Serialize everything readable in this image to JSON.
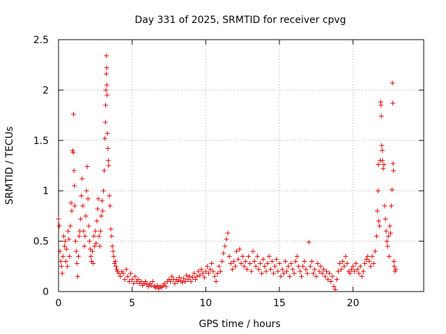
{
  "chart_data": {
    "type": "scatter",
    "title": "Day 331 of 2025, SRMTID for receiver cpvg",
    "xlabel": "GPS time / hours",
    "ylabel": "SRMTID / TECUs",
    "xlim": [
      0,
      24.8
    ],
    "ylim": [
      0,
      2.5
    ],
    "xticks": [
      0,
      5,
      10,
      15,
      20
    ],
    "xtick_labels": [
      "0",
      "5",
      "10",
      "15",
      "20"
    ],
    "yticks": [
      0,
      0.5,
      1,
      1.5,
      2,
      2.5
    ],
    "ytick_labels": [
      "0",
      "0.5",
      "1",
      "1.5",
      "2",
      "2.5"
    ],
    "grid": true,
    "marker": "+",
    "color": "#e00000",
    "series": [
      {
        "name": "SRMTID",
        "points": [
          [
            0.0,
            0.72
          ],
          [
            0.05,
            0.65
          ],
          [
            0.1,
            0.4
          ],
          [
            0.15,
            0.3
          ],
          [
            0.2,
            0.25
          ],
          [
            0.25,
            0.18
          ],
          [
            0.3,
            0.35
          ],
          [
            0.35,
            0.55
          ],
          [
            0.4,
            0.45
          ],
          [
            0.45,
            0.5
          ],
          [
            0.5,
            0.3
          ],
          [
            0.55,
            0.42
          ],
          [
            0.6,
            0.25
          ],
          [
            0.65,
            0.6
          ],
          [
            0.7,
            0.52
          ],
          [
            0.75,
            0.35
          ],
          [
            0.8,
            0.65
          ],
          [
            0.85,
            0.88
          ],
          [
            0.9,
            0.8
          ],
          [
            0.95,
            1.4
          ],
          [
            1.0,
            1.38
          ],
          [
            1.02,
            1.76
          ],
          [
            1.05,
            1.2
          ],
          [
            1.08,
            1.05
          ],
          [
            1.1,
            0.85
          ],
          [
            1.15,
            0.5
          ],
          [
            1.2,
            0.4
          ],
          [
            1.25,
            0.28
          ],
          [
            1.3,
            0.15
          ],
          [
            1.35,
            0.35
          ],
          [
            1.4,
            0.55
          ],
          [
            1.45,
            0.6
          ],
          [
            1.5,
            0.72
          ],
          [
            1.55,
            0.95
          ],
          [
            1.6,
            1.12
          ],
          [
            1.65,
            0.85
          ],
          [
            1.7,
            0.6
          ],
          [
            1.75,
            0.45
          ],
          [
            1.8,
            0.55
          ],
          [
            1.85,
            0.75
          ],
          [
            1.9,
            1.0
          ],
          [
            1.95,
            1.24
          ],
          [
            2.0,
            0.92
          ],
          [
            2.05,
            0.65
          ],
          [
            2.1,
            0.5
          ],
          [
            2.15,
            0.42
          ],
          [
            2.2,
            0.35
          ],
          [
            2.25,
            0.3
          ],
          [
            2.3,
            0.4
          ],
          [
            2.35,
            0.28
          ],
          [
            2.4,
            0.55
          ],
          [
            2.45,
            0.45
          ],
          [
            2.5,
            0.6
          ],
          [
            2.55,
            0.48
          ],
          [
            2.6,
            0.7
          ],
          [
            2.65,
            0.82
          ],
          [
            2.7,
            0.92
          ],
          [
            2.75,
            0.55
          ],
          [
            2.8,
            0.45
          ],
          [
            2.85,
            0.6
          ],
          [
            2.9,
            0.75
          ],
          [
            2.95,
            0.9
          ],
          [
            3.0,
            0.8
          ],
          [
            3.05,
            1.0
          ],
          [
            3.1,
            1.2
          ],
          [
            3.15,
            1.52
          ],
          [
            3.18,
            1.68
          ],
          [
            3.2,
            1.85
          ],
          [
            3.22,
            2.0
          ],
          [
            3.24,
            2.16
          ],
          [
            3.25,
            2.34
          ],
          [
            3.27,
            2.22
          ],
          [
            3.28,
            2.05
          ],
          [
            3.3,
            1.95
          ],
          [
            3.32,
            1.57
          ],
          [
            3.35,
            1.42
          ],
          [
            3.38,
            1.3
          ],
          [
            3.4,
            1.25
          ],
          [
            3.45,
            0.95
          ],
          [
            3.5,
            0.85
          ],
          [
            3.55,
            0.62
          ],
          [
            3.6,
            0.55
          ],
          [
            3.65,
            0.45
          ],
          [
            3.7,
            0.4
          ],
          [
            3.75,
            0.35
          ],
          [
            3.8,
            0.28
          ],
          [
            3.85,
            0.3
          ],
          [
            3.9,
            0.25
          ],
          [
            3.95,
            0.22
          ],
          [
            4.0,
            0.2
          ],
          [
            4.1,
            0.18
          ],
          [
            4.2,
            0.15
          ],
          [
            4.3,
            0.2
          ],
          [
            4.4,
            0.18
          ],
          [
            4.5,
            0.12
          ],
          [
            4.6,
            0.22
          ],
          [
            4.7,
            0.15
          ],
          [
            4.8,
            0.1
          ],
          [
            4.9,
            0.18
          ],
          [
            5.0,
            0.12
          ],
          [
            5.1,
            0.08
          ],
          [
            5.2,
            0.15
          ],
          [
            5.3,
            0.1
          ],
          [
            5.4,
            0.12
          ],
          [
            5.5,
            0.08
          ],
          [
            5.6,
            0.1
          ],
          [
            5.7,
            0.06
          ],
          [
            5.8,
            0.08
          ],
          [
            5.9,
            0.1
          ],
          [
            6.0,
            0.07
          ],
          [
            6.1,
            0.05
          ],
          [
            6.2,
            0.08
          ],
          [
            6.3,
            0.06
          ],
          [
            6.4,
            0.1
          ],
          [
            6.5,
            0.05
          ],
          [
            6.6,
            0.04
          ],
          [
            6.7,
            0.06
          ],
          [
            6.8,
            0.03
          ],
          [
            6.9,
            0.05
          ],
          [
            7.0,
            0.04
          ],
          [
            7.1,
            0.06
          ],
          [
            7.2,
            0.08
          ],
          [
            7.3,
            0.05
          ],
          [
            7.4,
            0.1
          ],
          [
            7.5,
            0.12
          ],
          [
            7.6,
            0.1
          ],
          [
            7.7,
            0.15
          ],
          [
            7.8,
            0.12
          ],
          [
            7.9,
            0.08
          ],
          [
            8.0,
            0.12
          ],
          [
            8.1,
            0.1
          ],
          [
            8.2,
            0.14
          ],
          [
            8.3,
            0.11
          ],
          [
            8.4,
            0.09
          ],
          [
            8.5,
            0.13
          ],
          [
            8.6,
            0.1
          ],
          [
            8.7,
            0.16
          ],
          [
            8.8,
            0.12
          ],
          [
            8.9,
            0.15
          ],
          [
            9.0,
            0.1
          ],
          [
            9.1,
            0.14
          ],
          [
            9.2,
            0.18
          ],
          [
            9.3,
            0.12
          ],
          [
            9.4,
            0.15
          ],
          [
            9.5,
            0.2
          ],
          [
            9.6,
            0.16
          ],
          [
            9.7,
            0.22
          ],
          [
            9.8,
            0.18
          ],
          [
            9.9,
            0.14
          ],
          [
            10.0,
            0.2
          ],
          [
            10.1,
            0.25
          ],
          [
            10.2,
            0.18
          ],
          [
            10.3,
            0.22
          ],
          [
            10.4,
            0.28
          ],
          [
            10.5,
            0.2
          ],
          [
            10.6,
            0.15
          ],
          [
            10.7,
            0.1
          ],
          [
            10.8,
            0.18
          ],
          [
            10.9,
            0.25
          ],
          [
            11.0,
            0.2
          ],
          [
            11.1,
            0.3
          ],
          [
            11.2,
            0.38
          ],
          [
            11.3,
            0.45
          ],
          [
            11.4,
            0.52
          ],
          [
            11.5,
            0.58
          ],
          [
            11.6,
            0.35
          ],
          [
            11.7,
            0.28
          ],
          [
            11.8,
            0.22
          ],
          [
            11.9,
            0.3
          ],
          [
            12.0,
            0.25
          ],
          [
            12.1,
            0.4
          ],
          [
            12.2,
            0.32
          ],
          [
            12.3,
            0.42
          ],
          [
            12.4,
            0.28
          ],
          [
            12.5,
            0.35
          ],
          [
            12.6,
            0.25
          ],
          [
            12.7,
            0.3
          ],
          [
            12.8,
            0.22
          ],
          [
            12.9,
            0.35
          ],
          [
            13.0,
            0.28
          ],
          [
            13.1,
            0.2
          ],
          [
            13.2,
            0.4
          ],
          [
            13.3,
            0.3
          ],
          [
            13.4,
            0.25
          ],
          [
            13.5,
            0.35
          ],
          [
            13.6,
            0.22
          ],
          [
            13.7,
            0.28
          ],
          [
            13.8,
            0.18
          ],
          [
            13.9,
            0.32
          ],
          [
            14.0,
            0.25
          ],
          [
            14.1,
            0.2
          ],
          [
            14.2,
            0.28
          ],
          [
            14.3,
            0.35
          ],
          [
            14.4,
            0.22
          ],
          [
            14.5,
            0.3
          ],
          [
            14.6,
            0.18
          ],
          [
            14.7,
            0.25
          ],
          [
            14.8,
            0.32
          ],
          [
            14.9,
            0.2
          ],
          [
            15.0,
            0.28
          ],
          [
            15.1,
            0.15
          ],
          [
            15.2,
            0.22
          ],
          [
            15.3,
            0.18
          ],
          [
            15.4,
            0.3
          ],
          [
            15.5,
            0.2
          ],
          [
            15.6,
            0.25
          ],
          [
            15.7,
            0.15
          ],
          [
            15.8,
            0.28
          ],
          [
            15.9,
            0.22
          ],
          [
            16.0,
            0.18
          ],
          [
            16.1,
            0.3
          ],
          [
            16.2,
            0.35
          ],
          [
            16.3,
            0.25
          ],
          [
            16.4,
            0.2
          ],
          [
            16.5,
            0.15
          ],
          [
            16.6,
            0.25
          ],
          [
            16.7,
            0.3
          ],
          [
            16.8,
            0.22
          ],
          [
            16.9,
            0.18
          ],
          [
            17.0,
            0.49
          ],
          [
            17.1,
            0.25
          ],
          [
            17.2,
            0.3
          ],
          [
            17.3,
            0.18
          ],
          [
            17.4,
            0.22
          ],
          [
            17.5,
            0.15
          ],
          [
            17.6,
            0.28
          ],
          [
            17.7,
            0.2
          ],
          [
            17.8,
            0.25
          ],
          [
            17.9,
            0.18
          ],
          [
            18.0,
            0.22
          ],
          [
            18.1,
            0.15
          ],
          [
            18.2,
            0.2
          ],
          [
            18.3,
            0.12
          ],
          [
            18.4,
            0.18
          ],
          [
            18.5,
            0.1
          ],
          [
            18.6,
            0.15
          ],
          [
            18.7,
            0.05
          ],
          [
            18.8,
            0.02
          ],
          [
            18.9,
            0.12
          ],
          [
            19.0,
            0.2
          ],
          [
            19.1,
            0.28
          ],
          [
            19.2,
            0.22
          ],
          [
            19.3,
            0.3
          ],
          [
            19.4,
            0.25
          ],
          [
            19.5,
            0.35
          ],
          [
            19.6,
            0.28
          ],
          [
            19.7,
            0.2
          ],
          [
            19.8,
            0.18
          ],
          [
            19.9,
            0.22
          ],
          [
            20.0,
            0.25
          ],
          [
            20.1,
            0.2
          ],
          [
            20.2,
            0.28
          ],
          [
            20.3,
            0.22
          ],
          [
            20.4,
            0.18
          ],
          [
            20.5,
            0.25
          ],
          [
            20.6,
            0.15
          ],
          [
            20.7,
            0.2
          ],
          [
            20.8,
            0.28
          ],
          [
            20.9,
            0.32
          ],
          [
            21.0,
            0.35
          ],
          [
            21.1,
            0.3
          ],
          [
            21.2,
            0.25
          ],
          [
            21.3,
            0.35
          ],
          [
            21.4,
            0.28
          ],
          [
            21.5,
            0.4
          ],
          [
            21.6,
            0.55
          ],
          [
            21.65,
            0.8
          ],
          [
            21.7,
            1.0
          ],
          [
            21.72,
            1.26
          ],
          [
            21.75,
            0.7
          ],
          [
            21.8,
            0.65
          ],
          [
            21.85,
            1.3
          ],
          [
            21.88,
            1.88
          ],
          [
            21.9,
            1.85
          ],
          [
            21.92,
            1.74
          ],
          [
            21.95,
            1.45
          ],
          [
            21.98,
            1.4
          ],
          [
            22.0,
            1.3
          ],
          [
            22.05,
            1.22
          ],
          [
            22.1,
            1.26
          ],
          [
            22.15,
            0.85
          ],
          [
            22.2,
            0.72
          ],
          [
            22.25,
            0.6
          ],
          [
            22.3,
            0.5
          ],
          [
            22.35,
            0.45
          ],
          [
            22.4,
            0.55
          ],
          [
            22.45,
            0.35
          ],
          [
            22.5,
            0.65
          ],
          [
            22.55,
            0.58
          ],
          [
            22.6,
            0.85
          ],
          [
            22.65,
            1.01
          ],
          [
            22.68,
            2.07
          ],
          [
            22.7,
            1.87
          ],
          [
            22.72,
            1.27
          ],
          [
            22.75,
            1.2
          ],
          [
            22.78,
            0.3
          ],
          [
            22.8,
            0.25
          ],
          [
            22.85,
            0.2
          ],
          [
            22.9,
            0.22
          ]
        ]
      }
    ]
  }
}
